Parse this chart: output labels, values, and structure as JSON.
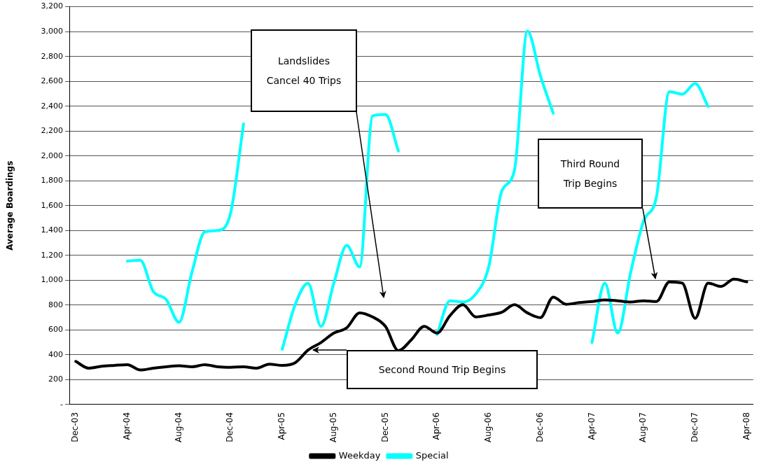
{
  "chart_data": {
    "type": "line",
    "ylabel": "Average Boardings",
    "categories": [
      "Dec-03",
      null,
      null,
      null,
      "Apr-04",
      null,
      null,
      null,
      "Aug-04",
      null,
      null,
      null,
      "Dec-04",
      null,
      null,
      null,
      "Apr-05",
      null,
      null,
      null,
      "Aug-05",
      null,
      null,
      null,
      "Dec-05",
      null,
      null,
      null,
      "Apr-06",
      null,
      null,
      null,
      "Aug-06",
      null,
      null,
      null,
      "Dec-06",
      null,
      null,
      null,
      "Apr-07",
      null,
      null,
      null,
      "Aug-07",
      null,
      null,
      null,
      "Dec-07",
      null,
      null,
      null,
      "Apr-08"
    ],
    "series": [
      {
        "name": "Weekday",
        "color": "#000000",
        "values": [
          347,
          293,
          308,
          315,
          321,
          278,
          293,
          304,
          312,
          304,
          321,
          304,
          300,
          304,
          293,
          325,
          315,
          336,
          438,
          499,
          575,
          618,
          738,
          705,
          629,
          434,
          521,
          629,
          575,
          716,
          803,
          705,
          720,
          742,
          803,
          738,
          699,
          864,
          807,
          820,
          829,
          842,
          835,
          825,
          835,
          829,
          987,
          977,
          694,
          977,
          950,
          1009,
          987
        ]
      },
      {
        "name": "Special",
        "color": "#00ffff",
        "values": [
          null,
          null,
          null,
          null,
          1154,
          1161,
          911,
          846,
          662,
          1063,
          1389,
          1400,
          1541,
          2257,
          null,
          null,
          445,
          803,
          977,
          629,
          977,
          1280,
          1107,
          2322,
          2333,
          2040,
          null,
          null,
          564,
          835,
          825,
          890,
          1107,
          1714,
          1888,
          3005,
          2647,
          2343,
          null,
          null,
          499,
          977,
          575,
          1063,
          1476,
          1671,
          2517,
          2496,
          2582,
          2398,
          null,
          null,
          null
        ]
      }
    ],
    "ylim": [
      0,
      3200
    ],
    "yticks": [
      {
        "value": 0,
        "label": "-"
      },
      200,
      400,
      600,
      800,
      {
        "value": 1000,
        "label": "1,000"
      },
      {
        "value": 1200,
        "label": "1,200"
      },
      {
        "value": 1400,
        "label": "1,400"
      },
      {
        "value": 1600,
        "label": "1,600"
      },
      {
        "value": 1800,
        "label": "1,800"
      },
      {
        "value": 2000,
        "label": "2,000"
      },
      {
        "value": 2200,
        "label": "2,200"
      },
      {
        "value": 2400,
        "label": "2,400"
      },
      {
        "value": 2600,
        "label": "2,600"
      },
      {
        "value": 2800,
        "label": "2,800"
      },
      {
        "value": 3000,
        "label": "3,000"
      },
      {
        "value": 3200,
        "label": "3,200"
      }
    ],
    "grid": "y",
    "legend": "bottom",
    "annotations": [
      "Landslides\nCancel 40 Trips",
      "Third Round\nTrip Begins",
      "Second Round Trip Begins"
    ]
  }
}
